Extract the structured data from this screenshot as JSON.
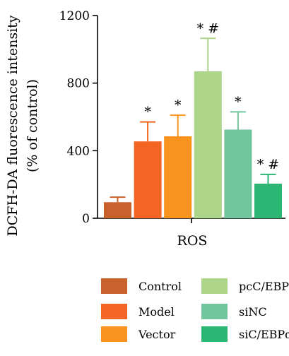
{
  "chart_data": {
    "type": "bar",
    "categories": [
      "Control",
      "Model",
      "Vector",
      "pcC/EBPα",
      "siNC",
      "siC/EBPα"
    ],
    "values": [
      95,
      455,
      485,
      870,
      525,
      205
    ],
    "errors": [
      30,
      115,
      125,
      195,
      105,
      55
    ],
    "annotations": [
      "",
      "*",
      "*",
      "* #",
      "*",
      "* #"
    ],
    "colors": [
      "#c8612b",
      "#f26522",
      "#f7931e",
      "#acd58a",
      "#71c69d",
      "#2bb673"
    ],
    "ylabel_line1": "DCFH-DA fluorescence intensity",
    "ylabel_line2": "(% of control)",
    "xlabel": "ROS",
    "ylim": [
      0,
      1200
    ],
    "yticks": [
      0,
      400,
      800,
      1200
    ],
    "grid": false,
    "legend_position": "bottom"
  }
}
